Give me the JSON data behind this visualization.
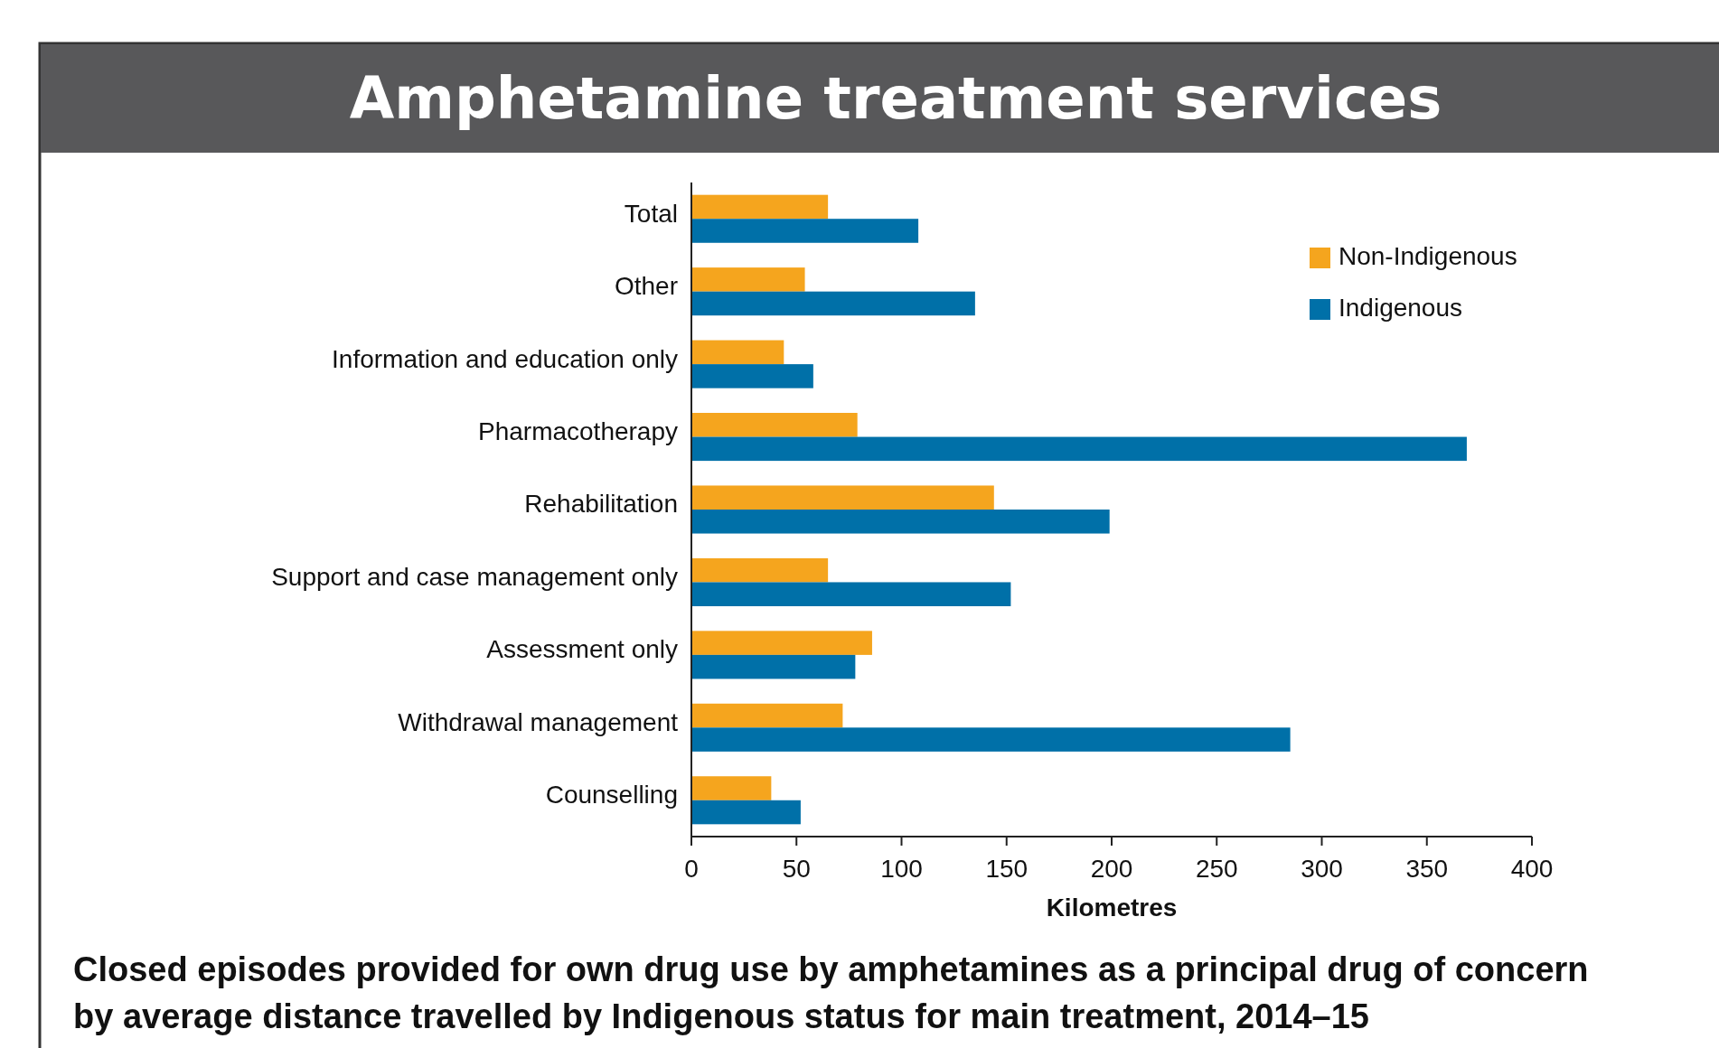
{
  "chart_data": {
    "type": "bar",
    "orientation": "horizontal",
    "title": "Amphetamine treatment services",
    "xlabel": "Kilometres",
    "categories": [
      "Total",
      "Other",
      "Information and education only",
      "Pharmacotherapy",
      "Rehabilitation",
      "Support and case management only",
      "Assessment only",
      "Withdrawal management",
      "Counselling"
    ],
    "series": [
      {
        "name": "Non-Indigenous",
        "color": "#f5a51e",
        "values": [
          65,
          54,
          44,
          79,
          144,
          65,
          86,
          72,
          38
        ]
      },
      {
        "name": "Indigenous",
        "color": "#0070a8",
        "values": [
          108,
          135,
          58,
          369,
          199,
          152,
          78,
          285,
          52
        ]
      }
    ],
    "xlim": [
      0,
      400
    ],
    "xticks": [
      0,
      50,
      100,
      150,
      200,
      250,
      300,
      350,
      400
    ],
    "grid": false,
    "legend": "top right",
    "annotations": [
      "Closed episodes provided for own drug use by amphetamines as a principal drug of concern by average distance travelled by Indigenous status for main treatment, 2014–15"
    ]
  }
}
